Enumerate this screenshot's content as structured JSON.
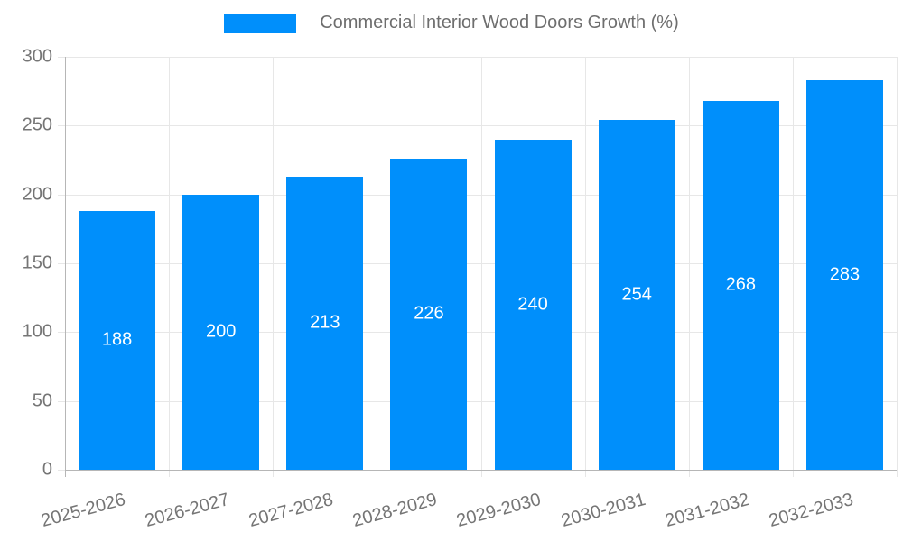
{
  "chart_data": {
    "type": "bar",
    "title": "Commercial Interior Wood Doors Growth (%)",
    "series_name": "Commercial Interior Wood Doors Growth (%)",
    "categories": [
      "2025-2026",
      "2026-2027",
      "2027-2028",
      "2028-2029",
      "2029-2030",
      "2030-2031",
      "2031-2032",
      "2032-2033"
    ],
    "values": [
      188,
      200,
      213,
      226,
      240,
      254,
      268,
      283
    ],
    "data_labels": [
      "188",
      "200",
      "213",
      "226",
      "240",
      "254",
      "268",
      "283"
    ],
    "xlabel": "",
    "ylabel": "",
    "ylim": [
      0,
      300
    ],
    "yticks": [
      0,
      50,
      100,
      150,
      200,
      250,
      300
    ],
    "grid": true,
    "legend_position": "top",
    "bar_color": "#008FFB",
    "data_label_color": "#ffffff",
    "axis_text_color": "#757575"
  }
}
